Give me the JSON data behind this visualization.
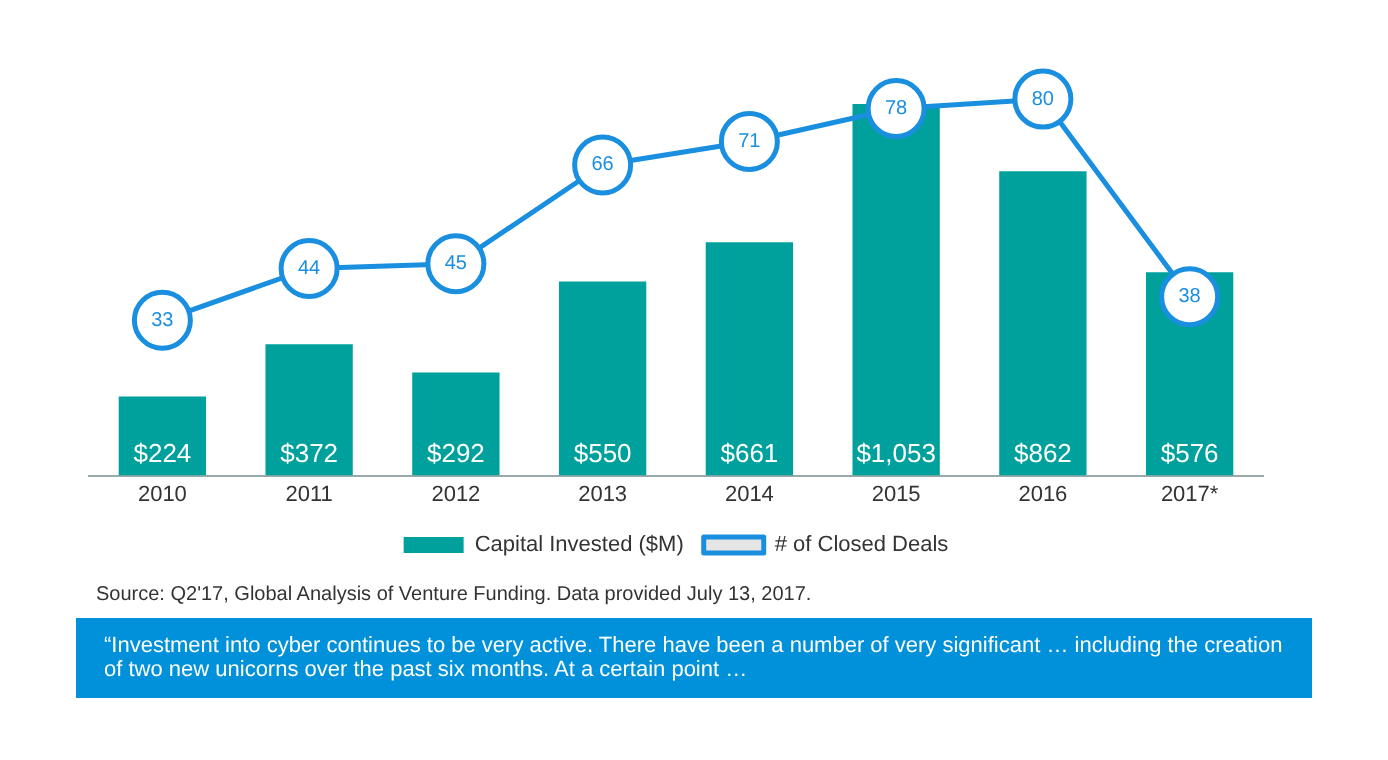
{
  "chart_data": {
    "type": "bar",
    "categories": [
      "2010",
      "2011",
      "2012",
      "2013",
      "2014",
      "2015",
      "2016",
      "2017*"
    ],
    "series": [
      {
        "name": "Capital Invested ($M)",
        "type": "bar",
        "color": "#00a19c",
        "values": [
          224,
          372,
          292,
          550,
          661,
          1053,
          862,
          576
        ],
        "value_labels": [
          "$224",
          "$372",
          "$292",
          "$550",
          "$661",
          "$1,053",
          "$862",
          "$576"
        ]
      },
      {
        "name": "# of Closed Deals",
        "type": "line",
        "axis": "y2",
        "color": "#1a8fe0",
        "values": [
          33,
          44,
          45,
          66,
          71,
          78,
          80,
          38
        ],
        "value_labels": [
          "33",
          "44",
          "45",
          "66",
          "71",
          "78",
          "80",
          "38"
        ]
      }
    ],
    "legend": "bottom",
    "grid": false,
    "marker": "circle",
    "tick_labels": "x",
    "annotations": [
      "Source: Q2'17, Global Analysis of Venture Funding. Data provided July 13, 2017.",
      "“Investment into cyber continues to be very active. There have been a number of very significant … including the creation of two new unicorns over the past six months. At a certain point …"
    ]
  }
}
